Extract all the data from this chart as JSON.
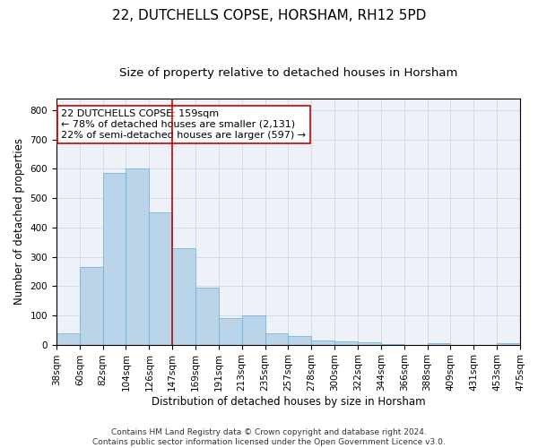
{
  "title": "22, DUTCHELLS COPSE, HORSHAM, RH12 5PD",
  "subtitle": "Size of property relative to detached houses in Horsham",
  "xlabel": "Distribution of detached houses by size in Horsham",
  "ylabel": "Number of detached properties",
  "bar_values": [
    38,
    265,
    585,
    600,
    450,
    330,
    195,
    90,
    100,
    38,
    30,
    15,
    12,
    8,
    2,
    0,
    5,
    0,
    0,
    5
  ],
  "bar_labels": [
    "38sqm",
    "60sqm",
    "82sqm",
    "104sqm",
    "126sqm",
    "147sqm",
    "169sqm",
    "191sqm",
    "213sqm",
    "235sqm",
    "257sqm",
    "278sqm",
    "300sqm",
    "322sqm",
    "344sqm",
    "366sqm",
    "388sqm",
    "409sqm",
    "431sqm",
    "453sqm",
    "475sqm"
  ],
  "bar_color": "#bad4ea",
  "bar_edge_color": "#6aaed6",
  "grid_color": "#c8d8ea",
  "vline_x": 5.0,
  "vline_color": "#cc0000",
  "annotation_line1": "22 DUTCHELLS COPSE: 159sqm",
  "annotation_line2": "← 78% of detached houses are smaller (2,131)",
  "annotation_line3": "22% of semi-detached houses are larger (597) →",
  "footer_text": "Contains HM Land Registry data © Crown copyright and database right 2024.\nContains public sector information licensed under the Open Government Licence v3.0.",
  "ylim": [
    0,
    840
  ],
  "yticks": [
    0,
    100,
    200,
    300,
    400,
    500,
    600,
    700,
    800
  ],
  "title_fontsize": 11,
  "subtitle_fontsize": 9.5,
  "axis_label_fontsize": 8.5,
  "tick_fontsize": 7.5,
  "annotation_fontsize": 8,
  "footer_fontsize": 6.5,
  "bg_color": "#ffffff",
  "plot_bg_color": "#eef2f8"
}
